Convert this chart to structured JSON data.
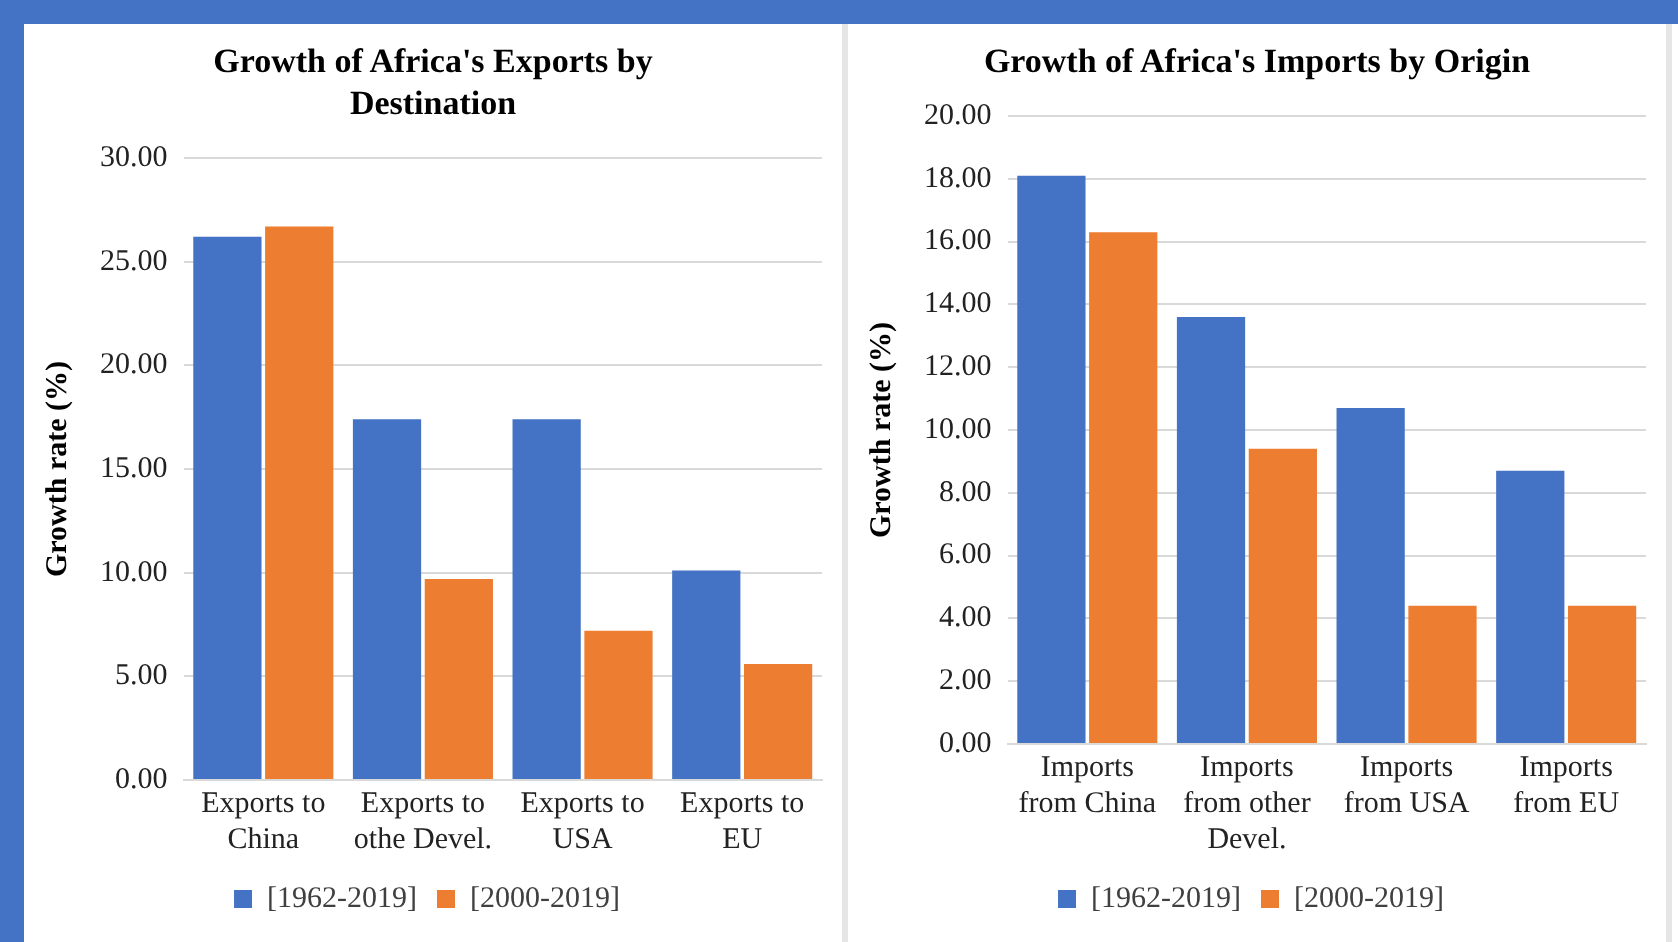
{
  "chart_data": [
    {
      "type": "bar",
      "title": "Growth of Africa's Exports by Destination",
      "ylabel": "Growth rate (%)",
      "categories": [
        "Exports to China",
        "Exports to othe Devel.",
        "Exports to USA",
        "Exports to EU"
      ],
      "series": [
        {
          "name": "[1962-2019]",
          "color": "#4472c4",
          "values": [
            26.2,
            17.4,
            17.4,
            10.1
          ]
        },
        {
          "name": "[2000-2019]",
          "color": "#ed7d31",
          "values": [
            26.7,
            9.7,
            7.2,
            5.6
          ]
        }
      ],
      "ylim": [
        0,
        30
      ],
      "yticks": [
        {
          "value": 0,
          "label": "0.00"
        },
        {
          "value": 5,
          "label": "5.00"
        },
        {
          "value": 10,
          "label": "10.00"
        },
        {
          "value": 15,
          "label": "15.00"
        },
        {
          "value": 20,
          "label": "20.00"
        },
        {
          "value": 25,
          "label": "25.00"
        },
        {
          "value": 30,
          "label": "30.00"
        }
      ],
      "grid": "y",
      "legend": "bottom"
    },
    {
      "type": "bar",
      "title": "Growth of Africa's Imports by Origin",
      "ylabel": "Growth rate (%)",
      "categories": [
        "Imports from China",
        "Imports from other Devel.",
        "Imports from USA",
        "Imports from EU"
      ],
      "series": [
        {
          "name": "[1962-2019]",
          "color": "#4472c4",
          "values": [
            18.1,
            13.6,
            10.7,
            8.7
          ]
        },
        {
          "name": "[2000-2019]",
          "color": "#ed7d31",
          "values": [
            16.3,
            9.4,
            4.4,
            4.4
          ]
        }
      ],
      "ylim": [
        0,
        20
      ],
      "yticks": [
        {
          "value": 0,
          "label": "0.00"
        },
        {
          "value": 2,
          "label": "2.00"
        },
        {
          "value": 4,
          "label": "4.00"
        },
        {
          "value": 6,
          "label": "6.00"
        },
        {
          "value": 8,
          "label": "8.00"
        },
        {
          "value": 10,
          "label": "10.00"
        },
        {
          "value": 12,
          "label": "12.00"
        },
        {
          "value": 14,
          "label": "14.00"
        },
        {
          "value": 16,
          "label": "16.00"
        },
        {
          "value": 18,
          "label": "18.00"
        },
        {
          "value": 20,
          "label": "20.00"
        }
      ],
      "grid": "y",
      "legend": "bottom"
    }
  ]
}
